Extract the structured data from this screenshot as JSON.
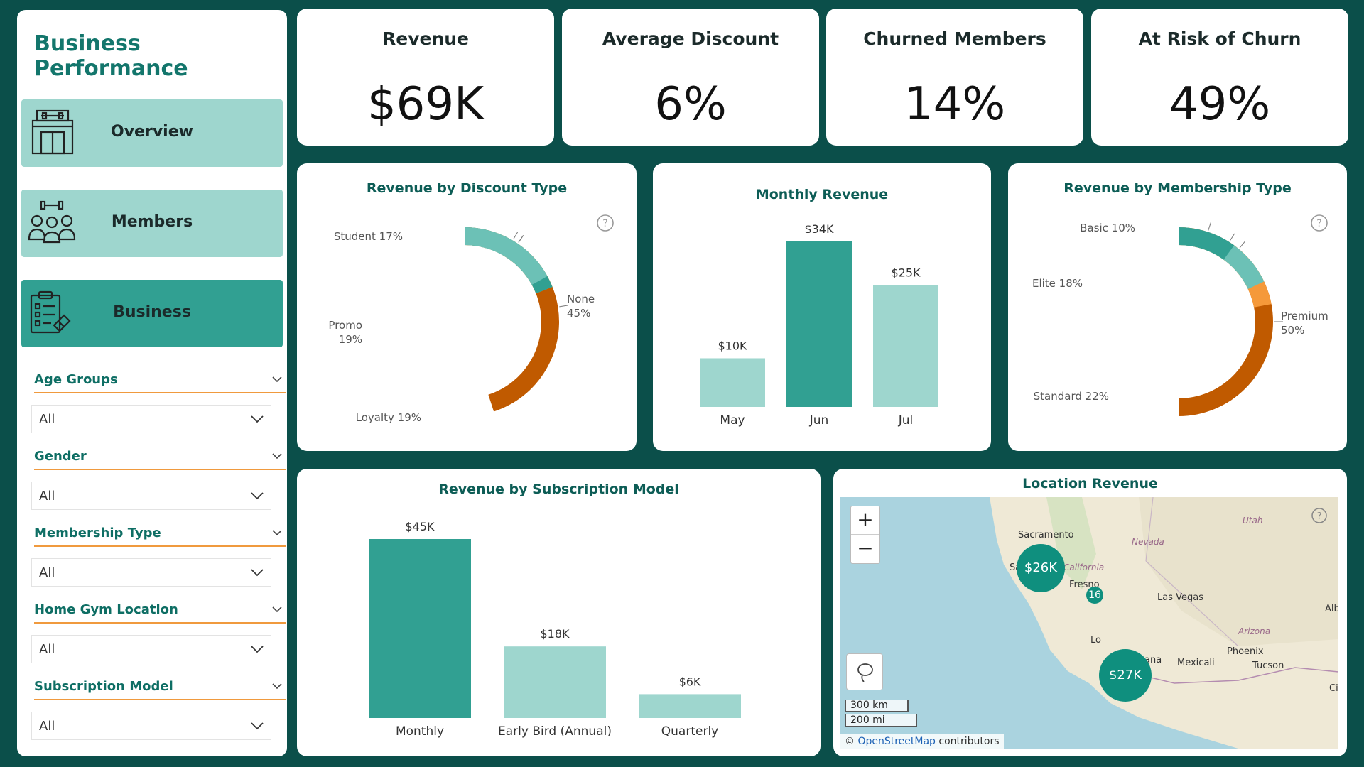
{
  "sidebar": {
    "title": "Business Performance",
    "nav": [
      {
        "label": "Overview",
        "icon": "gym-building-icon"
      },
      {
        "label": "Members",
        "icon": "members-icon"
      },
      {
        "label": "Business",
        "icon": "business-clipboard-icon"
      }
    ],
    "active_nav": "Business",
    "filters": [
      {
        "label": "Age Groups",
        "value": "All"
      },
      {
        "label": "Gender",
        "value": "All"
      },
      {
        "label": "Membership Type",
        "value": "All"
      },
      {
        "label": "Home Gym Location",
        "value": "All"
      },
      {
        "label": "Subscription Model",
        "value": "All"
      }
    ]
  },
  "kpis": [
    {
      "title": "Revenue",
      "value": "$69K"
    },
    {
      "title": "Average Discount",
      "value": "6%"
    },
    {
      "title": "Churned Members",
      "value": "14%"
    },
    {
      "title": "At Risk of Churn",
      "value": "49%"
    }
  ],
  "colors": {
    "background": "#0b4f4a",
    "teal_dark": "#31a092",
    "teal_light": "#9ed6ce",
    "orange_dark": "#c05a00",
    "orange_light": "#f5993a",
    "title_teal": "#0d5d56"
  },
  "chart_data": [
    {
      "type": "pie",
      "title": "Revenue by Discount Type",
      "categories": [
        "None",
        "Loyalty",
        "Promo",
        "Student"
      ],
      "values": [
        45,
        19,
        19,
        17
      ],
      "labels": [
        "None 45%",
        "Loyalty 19%",
        "Promo 19%",
        "Student 17%"
      ],
      "colors": [
        "#c05a00",
        "#f5993a",
        "#31a092",
        "#6cc1b6"
      ]
    },
    {
      "type": "bar",
      "title": "Monthly Revenue",
      "categories": [
        "May",
        "Jun",
        "Jul"
      ],
      "values": [
        10,
        34,
        25
      ],
      "labels": [
        "$10K",
        "$34K",
        "$25K"
      ],
      "colors": [
        "#9ed6ce",
        "#31a092",
        "#9ed6ce"
      ]
    },
    {
      "type": "pie",
      "title": "Revenue by Membership Type",
      "categories": [
        "Premium",
        "Standard",
        "Elite",
        "Basic"
      ],
      "values": [
        50,
        22,
        18,
        10
      ],
      "labels": [
        "Premium 50%",
        "Standard 22%",
        "Elite 18%",
        "Basic 10%"
      ],
      "colors": [
        "#c05a00",
        "#f5993a",
        "#6cc1b6",
        "#31a092"
      ]
    },
    {
      "type": "bar",
      "title": "Revenue by Subscription Model",
      "categories": [
        "Monthly",
        "Early Bird (Annual)",
        "Quarterly"
      ],
      "values": [
        45,
        18,
        6
      ],
      "labels": [
        "$45K",
        "$18K",
        "$6K"
      ],
      "colors": [
        "#31a092",
        "#9ed6ce",
        "#9ed6ce"
      ]
    }
  ],
  "map": {
    "title": "Location Revenue",
    "zoom_in": "+",
    "zoom_out": "−",
    "scale_km": "300 km",
    "scale_mi": "200 mi",
    "attribution_prefix": "©",
    "attribution_link": "OpenStreetMap",
    "attribution_suffix": "contributors",
    "bubbles": [
      {
        "label": "$26K"
      },
      {
        "label": "16"
      },
      {
        "label": "$27K"
      }
    ],
    "places": [
      "Sacramento",
      "San",
      "Fresno",
      "Las Vegas",
      "Phoenix",
      "Tucson",
      "Mexicali",
      "Alb",
      "Ci",
      "ana",
      "Lo"
    ],
    "regions": [
      "Utah",
      "Nevada",
      "California",
      "Arizona"
    ]
  }
}
